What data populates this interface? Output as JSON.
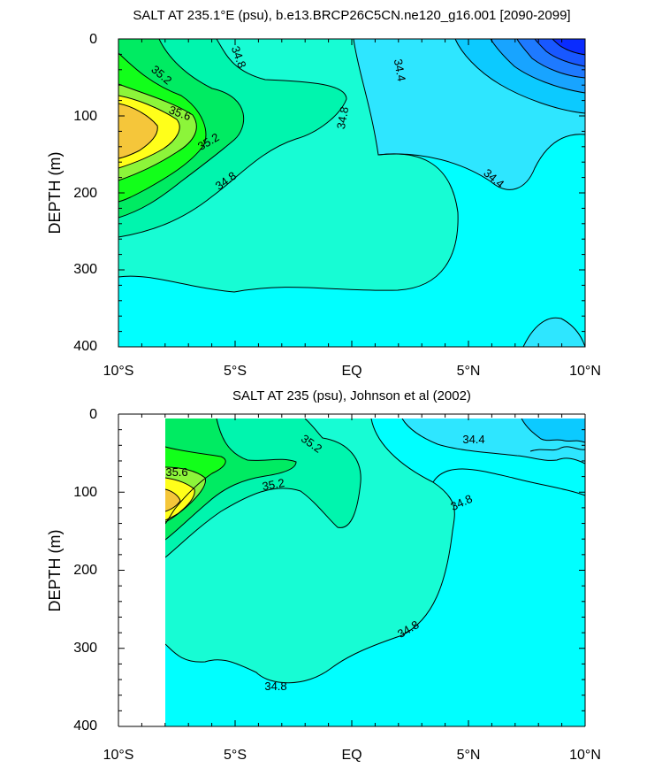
{
  "colors": {
    "c_low1": "#0a2cff",
    "c_low2": "#1858ff",
    "c_low3": "#1e7aff",
    "c_low4": "#18a4ff",
    "c_low5": "#0ccaff",
    "c_344": "#2ee6ff",
    "c_346": "#00ffff",
    "c_348": "#17fcd4",
    "c_350": "#00f5ae",
    "c_352": "#00eb62",
    "c_354": "#12ff1a",
    "c_356": "#8cf53a",
    "c_358": "#ffff1a",
    "c_360": "#f5c63a"
  },
  "chart_data": [
    {
      "type": "contour",
      "title": "SALT AT 235.1°E (psu), b.e13.BRCP26C5CN.ne120_g16.001 [2090-2099]",
      "ylabel": "DEPTH (m)",
      "xlabel": "",
      "xticks": [
        "10°S",
        "5°S",
        "EQ",
        "5°N",
        "10°N"
      ],
      "yticks": [
        "0",
        "100",
        "200",
        "300",
        "400"
      ],
      "xlim": [
        -10,
        10
      ],
      "ylim": [
        0,
        400
      ],
      "contour_labels": [
        "34.8",
        "35.2",
        "35.6",
        "35.2",
        "34.8",
        "34.8",
        "34.4",
        "34.4"
      ]
    },
    {
      "type": "contour",
      "title": "SALT AT 235 (psu), Johnson et al (2002)",
      "ylabel": "DEPTH (m)",
      "xlabel": "",
      "xticks": [
        "10°S",
        "5°S",
        "EQ",
        "5°N",
        "10°N"
      ],
      "yticks": [
        "0",
        "100",
        "200",
        "300",
        "400"
      ],
      "xlim": [
        -10,
        10
      ],
      "ylim": [
        0,
        400
      ],
      "contour_labels": [
        "35.2",
        "35.6",
        "35.2",
        "34.8",
        "34.4",
        "34.8",
        "34.8"
      ]
    }
  ]
}
